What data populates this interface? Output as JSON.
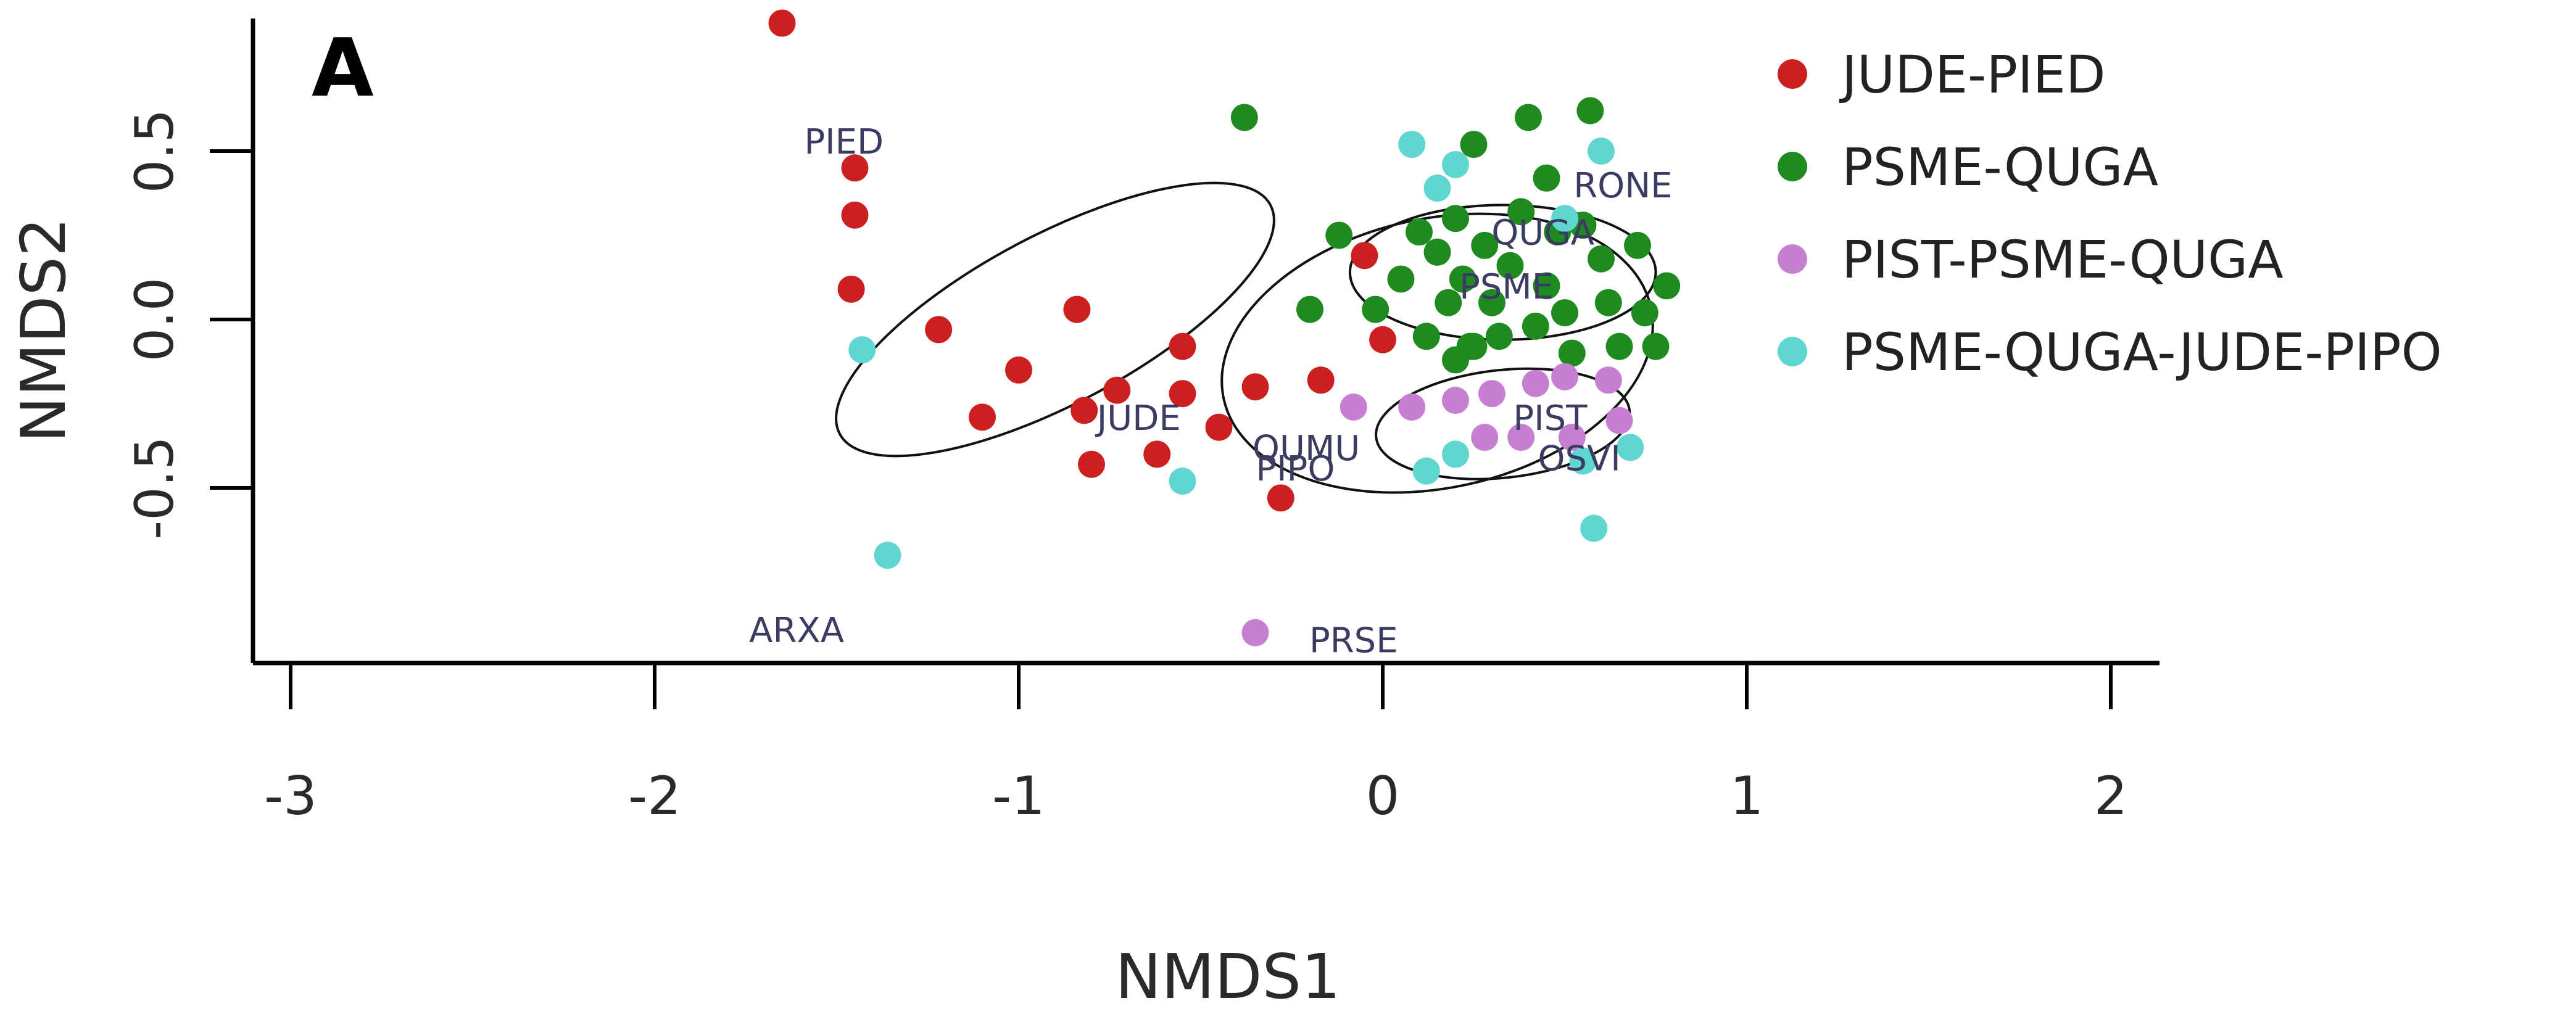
{
  "chart_data": {
    "type": "scatter",
    "panel_label": "A",
    "xlabel": "NMDS1",
    "ylabel": "NMDS2",
    "xlim": [
      -3.1,
      2.1
    ],
    "ylim": [
      -1.0,
      0.9
    ],
    "xticks": [
      -3,
      -2,
      -1,
      0,
      1,
      2
    ],
    "yticks": [
      -0.5,
      0.0,
      0.5
    ],
    "ytick_labels": [
      "-0.5",
      "0.0",
      "0.5"
    ],
    "legend_position": "top-right",
    "series": [
      {
        "name": "JUDE-PIED",
        "color": "#cc1f1f",
        "points": [
          [
            -1.65,
            0.88
          ],
          [
            -1.45,
            0.45
          ],
          [
            -1.45,
            0.31
          ],
          [
            -1.46,
            0.09
          ],
          [
            -1.22,
            -0.03
          ],
          [
            -1.0,
            -0.15
          ],
          [
            -1.1,
            -0.29
          ],
          [
            -0.84,
            0.03
          ],
          [
            -0.82,
            -0.27
          ],
          [
            -0.8,
            -0.43
          ],
          [
            -0.73,
            -0.21
          ],
          [
            -0.62,
            -0.4
          ],
          [
            -0.55,
            -0.08
          ],
          [
            -0.55,
            -0.22
          ],
          [
            -0.45,
            -0.32
          ],
          [
            -0.35,
            -0.2
          ],
          [
            -0.28,
            -0.53
          ],
          [
            -0.17,
            -0.18
          ],
          [
            -0.05,
            0.19
          ],
          [
            0.0,
            -0.06
          ]
        ]
      },
      {
        "name": "PSME-QUGA",
        "color": "#1f8a1f",
        "points": [
          [
            -0.38,
            0.6
          ],
          [
            -0.12,
            0.25
          ],
          [
            -0.2,
            0.03
          ],
          [
            -0.02,
            0.03
          ],
          [
            0.05,
            0.12
          ],
          [
            0.1,
            0.26
          ],
          [
            0.12,
            -0.05
          ],
          [
            0.15,
            0.2
          ],
          [
            0.18,
            0.05
          ],
          [
            0.2,
            0.3
          ],
          [
            0.22,
            0.12
          ],
          [
            0.24,
            -0.08
          ],
          [
            0.25,
            0.52
          ],
          [
            0.28,
            0.22
          ],
          [
            0.3,
            0.05
          ],
          [
            0.32,
            -0.05
          ],
          [
            0.35,
            0.16
          ],
          [
            0.38,
            0.32
          ],
          [
            0.4,
            0.6
          ],
          [
            0.42,
            -0.02
          ],
          [
            0.45,
            0.1
          ],
          [
            0.48,
            0.26
          ],
          [
            0.5,
            0.02
          ],
          [
            0.52,
            -0.1
          ],
          [
            0.57,
            0.62
          ],
          [
            0.6,
            0.18
          ],
          [
            0.62,
            0.05
          ],
          [
            0.65,
            -0.08
          ],
          [
            0.7,
            0.22
          ],
          [
            0.72,
            0.02
          ],
          [
            0.75,
            -0.08
          ],
          [
            0.78,
            0.1
          ],
          [
            0.25,
            -0.08
          ],
          [
            0.45,
            0.42
          ],
          [
            0.55,
            0.28
          ],
          [
            0.2,
            -0.12
          ]
        ]
      },
      {
        "name": "PIST-PSME-QUGA",
        "color": "#c77fd1",
        "points": [
          [
            -0.08,
            -0.26
          ],
          [
            0.08,
            -0.26
          ],
          [
            0.2,
            -0.24
          ],
          [
            0.3,
            -0.22
          ],
          [
            0.42,
            -0.19
          ],
          [
            0.5,
            -0.17
          ],
          [
            0.62,
            -0.18
          ],
          [
            0.65,
            -0.3
          ],
          [
            0.52,
            -0.35
          ],
          [
            0.38,
            -0.35
          ],
          [
            0.28,
            -0.35
          ],
          [
            0.55,
            -0.42
          ],
          [
            -0.35,
            -0.93
          ]
        ]
      },
      {
        "name": "PSME-QUGA-JUDE-PIPO",
        "color": "#5fd6cf",
        "points": [
          [
            -1.43,
            -0.09
          ],
          [
            -1.36,
            -0.7
          ],
          [
            -0.55,
            -0.48
          ],
          [
            0.08,
            0.52
          ],
          [
            0.2,
            0.46
          ],
          [
            0.15,
            0.39
          ],
          [
            0.6,
            0.5
          ],
          [
            0.5,
            0.3
          ],
          [
            0.55,
            -0.42
          ],
          [
            0.58,
            -0.62
          ],
          [
            0.68,
            -0.38
          ],
          [
            0.12,
            -0.45
          ],
          [
            0.2,
            -0.4
          ]
        ]
      }
    ],
    "species_labels": [
      {
        "text": "PIED",
        "x": -1.48,
        "y": 0.52
      },
      {
        "text": "RONE",
        "x": 0.66,
        "y": 0.39
      },
      {
        "text": "QUGA",
        "x": 0.44,
        "y": 0.25
      },
      {
        "text": "PSME",
        "x": 0.34,
        "y": 0.09
      },
      {
        "text": "JUDE",
        "x": -0.67,
        "y": -0.3
      },
      {
        "text": "QUMU",
        "x": -0.21,
        "y": -0.39
      },
      {
        "text": "PIPO",
        "x": -0.24,
        "y": -0.45
      },
      {
        "text": "PIST",
        "x": 0.46,
        "y": -0.3
      },
      {
        "text": "OSVI",
        "x": 0.54,
        "y": -0.42
      },
      {
        "text": "ARXA",
        "x": -1.61,
        "y": -0.93
      },
      {
        "text": "PRSE",
        "x": -0.08,
        "y": -0.96
      }
    ],
    "ellipses": [
      {
        "cx": -0.9,
        "cy": 0.0,
        "rx": 0.67,
        "ry": 0.25,
        "angle_deg": 28
      },
      {
        "cx": 0.15,
        "cy": -0.1,
        "rx": 0.6,
        "ry": 0.4,
        "angle_deg": 12
      },
      {
        "cx": 0.33,
        "cy": 0.14,
        "rx": 0.42,
        "ry": 0.2,
        "angle_deg": 0
      },
      {
        "cx": 0.33,
        "cy": -0.31,
        "rx": 0.35,
        "ry": 0.16,
        "angle_deg": 6
      }
    ]
  }
}
